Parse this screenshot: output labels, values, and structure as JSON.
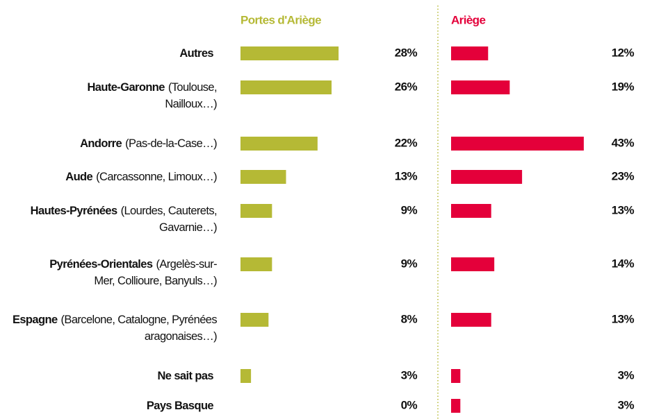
{
  "chart_data": {
    "type": "bar",
    "orientation": "horizontal",
    "categories": [
      "Autres",
      "Haute-Garonne",
      "Andorre",
      "Aude",
      "Hautes-Pyrénées",
      "Pyrénées-Orientales",
      "Espagne",
      "Ne sait pas",
      "Pays Basque"
    ],
    "category_notes": [
      null,
      "(Toulouse, Nailloux…)",
      "(Pas-de-la-Case…)",
      "(Carcassonne, Limoux…)",
      "(Lourdes, Cauterets, Gavarnie…)",
      "(Argelès-sur-Mer, Collioure, Banyuls…)",
      "(Barcelone, Catalogne, Pyrénées aragonaises…)",
      null,
      null
    ],
    "series": [
      {
        "name": "Portes d'Ariège",
        "color": "#b5b935",
        "values": [
          28,
          26,
          22,
          13,
          9,
          9,
          8,
          3,
          0
        ],
        "value_labels": [
          "28%",
          "26%",
          "22%",
          "13%",
          "9%",
          "9%",
          "8%",
          "3%",
          "0%"
        ]
      },
      {
        "name": "Ariège",
        "color": "#e4003a",
        "values": [
          12,
          19,
          43,
          23,
          13,
          14,
          13,
          3,
          3
        ],
        "value_labels": [
          "12%",
          "19%",
          "43%",
          "23%",
          "13%",
          "14%",
          "13%",
          "3%",
          "3%"
        ]
      }
    ]
  }
}
